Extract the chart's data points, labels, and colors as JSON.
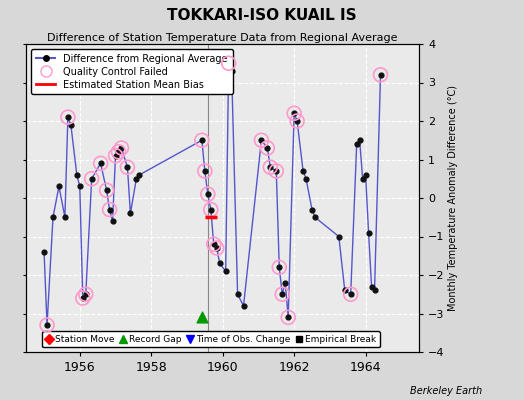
{
  "title": "TOKKARI-ISO KUAIL IS",
  "subtitle": "Difference of Station Temperature Data from Regional Average",
  "ylabel_right": "Monthly Temperature Anomaly Difference (°C)",
  "xlim": [
    1954.5,
    1965.5
  ],
  "ylim": [
    -4,
    4
  ],
  "yticks": [
    -4,
    -3,
    -2,
    -1,
    0,
    1,
    2,
    3,
    4
  ],
  "xticks": [
    1956,
    1958,
    1960,
    1962,
    1964
  ],
  "background_color": "#d8d8d8",
  "plot_bg_color": "#eaeaea",
  "grid_color": "#ffffff",
  "line_color": "#5555cc",
  "marker_color": "#111111",
  "qc_color": "#ff99cc",
  "credit": "Berkeley Earth",
  "data_points": [
    [
      1955.0,
      -1.4
    ],
    [
      1955.083,
      -3.3
    ],
    [
      1955.25,
      -0.5
    ],
    [
      1955.417,
      0.3
    ],
    [
      1955.583,
      -0.5
    ],
    [
      1955.667,
      2.1
    ],
    [
      1955.75,
      1.9
    ],
    [
      1955.917,
      0.6
    ],
    [
      1956.0,
      0.3
    ],
    [
      1956.083,
      -2.6
    ],
    [
      1956.167,
      -2.5
    ],
    [
      1956.333,
      0.5
    ],
    [
      1956.583,
      0.9
    ],
    [
      1956.75,
      0.2
    ],
    [
      1956.833,
      -0.3
    ],
    [
      1956.917,
      -0.6
    ],
    [
      1957.0,
      1.1
    ],
    [
      1957.083,
      1.2
    ],
    [
      1957.167,
      1.3
    ],
    [
      1957.333,
      0.8
    ],
    [
      1957.417,
      -0.4
    ],
    [
      1957.583,
      0.5
    ],
    [
      1957.667,
      0.6
    ],
    [
      1959.417,
      1.5
    ],
    [
      1959.5,
      0.7
    ],
    [
      1959.583,
      0.1
    ],
    [
      1959.667,
      -0.3
    ],
    [
      1959.75,
      -1.2
    ],
    [
      1959.833,
      -1.3
    ],
    [
      1959.917,
      -1.7
    ],
    [
      1960.083,
      -1.9
    ],
    [
      1960.167,
      3.5
    ],
    [
      1960.25,
      3.3
    ],
    [
      1960.417,
      -2.5
    ],
    [
      1960.583,
      -2.8
    ],
    [
      1961.083,
      1.5
    ],
    [
      1961.25,
      1.3
    ],
    [
      1961.333,
      0.8
    ],
    [
      1961.5,
      0.7
    ],
    [
      1961.583,
      -1.8
    ],
    [
      1961.667,
      -2.5
    ],
    [
      1961.75,
      -2.2
    ],
    [
      1961.833,
      -3.1
    ],
    [
      1962.0,
      2.2
    ],
    [
      1962.083,
      2.0
    ],
    [
      1962.25,
      0.7
    ],
    [
      1962.333,
      0.5
    ],
    [
      1962.5,
      -0.3
    ],
    [
      1962.583,
      -0.5
    ],
    [
      1963.25,
      -1.0
    ],
    [
      1963.417,
      -2.4
    ],
    [
      1963.583,
      -2.5
    ],
    [
      1963.75,
      1.4
    ],
    [
      1963.833,
      1.5
    ],
    [
      1963.917,
      0.5
    ],
    [
      1964.0,
      0.6
    ],
    [
      1964.083,
      -0.9
    ],
    [
      1964.167,
      -2.3
    ],
    [
      1964.25,
      -2.4
    ],
    [
      1964.417,
      3.2
    ]
  ],
  "qc_failed_points": [
    [
      1955.083,
      -3.3
    ],
    [
      1955.667,
      2.1
    ],
    [
      1956.083,
      -2.6
    ],
    [
      1956.167,
      -2.5
    ],
    [
      1956.333,
      0.5
    ],
    [
      1956.583,
      0.9
    ],
    [
      1956.75,
      0.2
    ],
    [
      1956.833,
      -0.3
    ],
    [
      1957.0,
      1.1
    ],
    [
      1957.083,
      1.2
    ],
    [
      1957.167,
      1.3
    ],
    [
      1957.333,
      0.8
    ],
    [
      1959.417,
      1.5
    ],
    [
      1959.5,
      0.7
    ],
    [
      1959.583,
      0.1
    ],
    [
      1959.667,
      -0.3
    ],
    [
      1959.75,
      -1.2
    ],
    [
      1959.833,
      -1.3
    ],
    [
      1960.167,
      3.5
    ],
    [
      1961.083,
      1.5
    ],
    [
      1961.25,
      1.3
    ],
    [
      1961.333,
      0.8
    ],
    [
      1961.5,
      0.7
    ],
    [
      1961.583,
      -1.8
    ],
    [
      1961.667,
      -2.5
    ],
    [
      1961.833,
      -3.1
    ],
    [
      1962.0,
      2.2
    ],
    [
      1962.083,
      2.0
    ],
    [
      1963.583,
      -2.5
    ],
    [
      1964.417,
      3.2
    ]
  ],
  "gap_marker_x": 1959.42,
  "gap_marker_y": -3.1,
  "bias_line_x1": 1959.5,
  "bias_line_x2": 1959.83,
  "bias_line_y": -0.5,
  "vertical_line_x": 1959.583
}
